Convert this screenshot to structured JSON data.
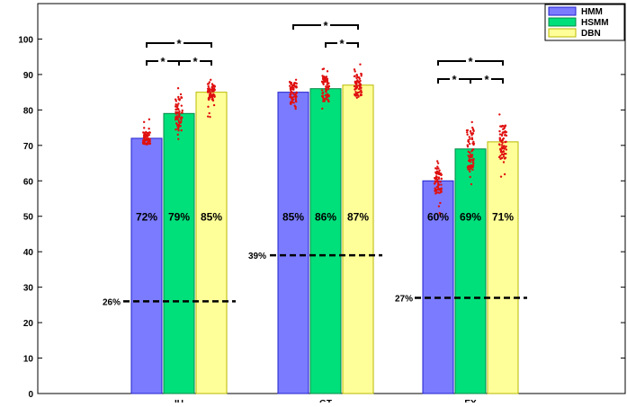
{
  "chart_data": {
    "type": "bar",
    "categories": [
      "IU",
      "GT",
      "EX"
    ],
    "ylim": [
      0,
      110
    ],
    "yticks": [
      0,
      10,
      20,
      30,
      40,
      50,
      60,
      70,
      80,
      90,
      100
    ],
    "title": "",
    "xlabel": "",
    "ylabel": "",
    "grid": false,
    "legend_position": "top-right",
    "series": [
      {
        "name": "HMM",
        "color": "#7b7bff",
        "values": [
          72,
          85,
          60
        ],
        "labels": [
          "72%",
          "85%",
          "60%"
        ]
      },
      {
        "name": "HSMM",
        "color": "#00e07a",
        "values": [
          79,
          86,
          69
        ],
        "labels": [
          "79%",
          "86%",
          "69%"
        ]
      },
      {
        "name": "DBN",
        "color": "#ffff99",
        "values": [
          85,
          87,
          71
        ],
        "labels": [
          "85%",
          "87%",
          "71%"
        ]
      }
    ],
    "chance_levels": [
      {
        "value": 26,
        "label": "26%"
      },
      {
        "value": 39,
        "label": "39%"
      },
      {
        "value": 27,
        "label": "27%"
      }
    ],
    "significance_star": "*",
    "significance": [
      [
        [
          0,
          2
        ],
        [
          0,
          1
        ],
        [
          1,
          2
        ]
      ],
      [
        [
          0,
          2
        ],
        [
          1,
          2
        ]
      ],
      [
        [
          0,
          2
        ],
        [
          0,
          1
        ],
        [
          1,
          2
        ]
      ]
    ],
    "sample_spread": [
      [
        [
          69,
          78
        ],
        [
          70,
          87
        ],
        [
          78,
          89
        ]
      ],
      [
        [
          80,
          90
        ],
        [
          80,
          92
        ],
        [
          82,
          93
        ]
      ],
      [
        [
          50,
          66
        ],
        [
          58,
          79
        ],
        [
          61,
          79
        ]
      ]
    ]
  }
}
